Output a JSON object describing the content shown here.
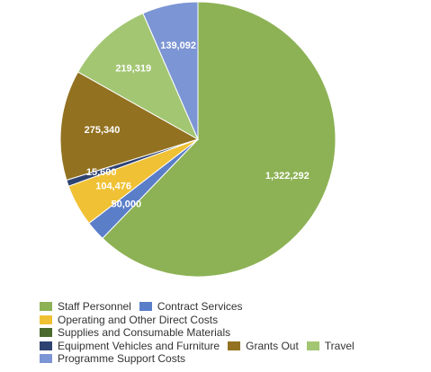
{
  "chart_data": {
    "type": "pie",
    "title": "",
    "categories": [
      "Staff Personnel",
      "Contract Services",
      "Operating and Other Direct Costs",
      "Supplies and Consumable Materials",
      "Equipment Vehicles and Furniture",
      "Grants Out",
      "Travel",
      "Programme Support Costs"
    ],
    "values": [
      1322292,
      50000,
      104476,
      0,
      15600,
      275340,
      219319,
      139092
    ],
    "labels": [
      "1,322,292",
      "50,000",
      "104,476",
      "",
      "15,600",
      "275,340",
      "219,319",
      "139,092"
    ],
    "colors": [
      "#8db255",
      "#5b7ec9",
      "#f0c135",
      "#4b6a2e",
      "#2e4371",
      "#927120",
      "#a3c672",
      "#7c95d4"
    ],
    "legend_position": "bottom",
    "legend_rows": [
      [
        0,
        1
      ],
      [
        2
      ],
      [
        3
      ],
      [
        4,
        5,
        6
      ],
      [
        7
      ]
    ]
  }
}
